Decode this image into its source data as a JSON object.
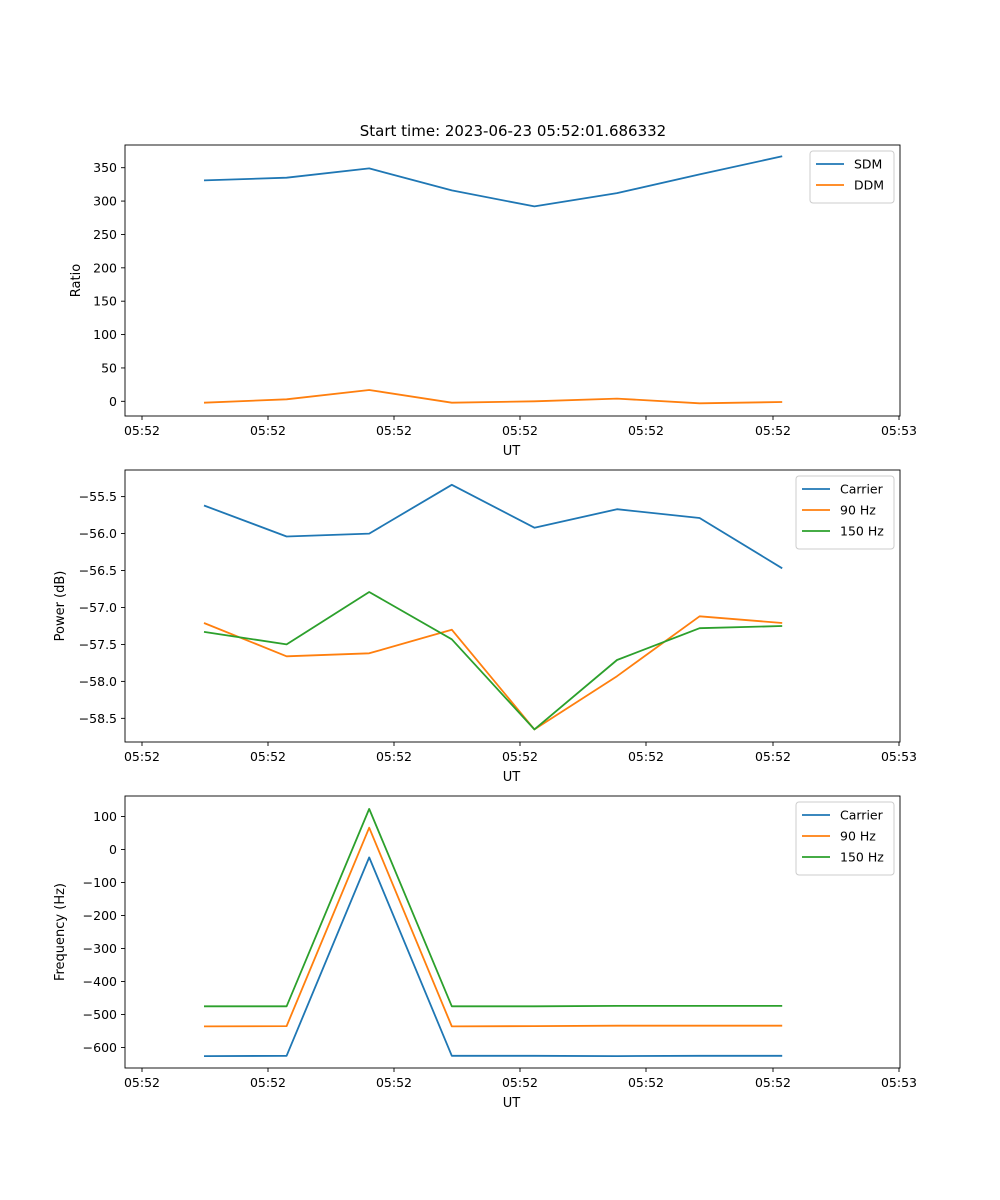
{
  "colors": {
    "c0": "#1f77b4",
    "c1": "#ff7f0e",
    "c2": "#2ca02c"
  },
  "chart_data": [
    {
      "type": "line",
      "title": "Start time: 2023-06-23 05:52:01.686332",
      "xlabel": "UT",
      "ylabel": "Ratio",
      "xtick_labels": [
        "05:52",
        "05:52",
        "05:52",
        "05:52",
        "05:52",
        "05:52",
        "05:52",
        "05:53"
      ],
      "ylim": [
        -22,
        384
      ],
      "yticks": [
        0,
        50,
        100,
        150,
        200,
        250,
        300,
        350
      ],
      "grid": false,
      "legend": "top-right",
      "x": [
        1,
        2,
        3,
        4,
        5,
        6,
        7,
        8
      ],
      "series": [
        {
          "name": "SDM",
          "color": "c0",
          "values": [
            331,
            335,
            349,
            316,
            292,
            312,
            340,
            367
          ]
        },
        {
          "name": "DDM",
          "color": "c1",
          "values": [
            -2,
            3,
            17,
            -2,
            0,
            4,
            -3,
            -1
          ]
        }
      ]
    },
    {
      "type": "line",
      "title": "",
      "xlabel": "UT",
      "ylabel": "Power (dB)",
      "xtick_labels": [
        "05:52",
        "05:52",
        "05:52",
        "05:52",
        "05:52",
        "05:52",
        "05:52",
        "05:53"
      ],
      "ylim": [
        -58.82,
        -55.14
      ],
      "yticks": [
        -58.5,
        -58.0,
        -57.5,
        -57.0,
        -56.5,
        -56.0,
        -55.5
      ],
      "ytick_labels": [
        "−58.5",
        "−58.0",
        "−57.5",
        "−57.0",
        "−56.5",
        "−56.0",
        "−55.5"
      ],
      "grid": false,
      "legend": "top-right",
      "x": [
        1,
        2,
        3,
        4,
        5,
        6,
        7,
        8
      ],
      "series": [
        {
          "name": "Carrier",
          "color": "c0",
          "values": [
            -55.62,
            -56.04,
            -56.0,
            -55.34,
            -55.92,
            -55.67,
            -55.79,
            -56.47
          ]
        },
        {
          "name": "90 Hz",
          "color": "c1",
          "values": [
            -57.21,
            -57.66,
            -57.62,
            -57.3,
            -58.65,
            -57.93,
            -57.12,
            -57.21
          ]
        },
        {
          "name": "150 Hz",
          "color": "c2",
          "values": [
            -57.33,
            -57.5,
            -56.79,
            -57.43,
            -58.65,
            -57.71,
            -57.28,
            -57.25
          ]
        }
      ]
    },
    {
      "type": "line",
      "title": "",
      "xlabel": "UT",
      "ylabel": "Frequency (Hz)",
      "xtick_labels": [
        "05:52",
        "05:52",
        "05:52",
        "05:52",
        "05:52",
        "05:52",
        "05:52",
        "05:53"
      ],
      "ylim": [
        -662,
        162
      ],
      "yticks": [
        -600,
        -500,
        -400,
        -300,
        -200,
        -100,
        0,
        100
      ],
      "ytick_labels": [
        "−600",
        "−500",
        "−400",
        "−300",
        "−200",
        "−100",
        "0",
        "100"
      ],
      "grid": false,
      "legend": "top-right",
      "x": [
        1,
        2,
        3,
        4,
        5,
        6,
        7,
        8
      ],
      "series": [
        {
          "name": "Carrier",
          "color": "c0",
          "values": [
            -626,
            -625,
            -24,
            -625,
            -625,
            -626,
            -625,
            -625
          ]
        },
        {
          "name": "90 Hz",
          "color": "c1",
          "values": [
            -536,
            -535,
            66,
            -536,
            -535,
            -534,
            -534,
            -534
          ]
        },
        {
          "name": "150 Hz",
          "color": "c2",
          "values": [
            -475,
            -475,
            123,
            -475,
            -475,
            -474,
            -474,
            -474
          ]
        }
      ]
    }
  ]
}
